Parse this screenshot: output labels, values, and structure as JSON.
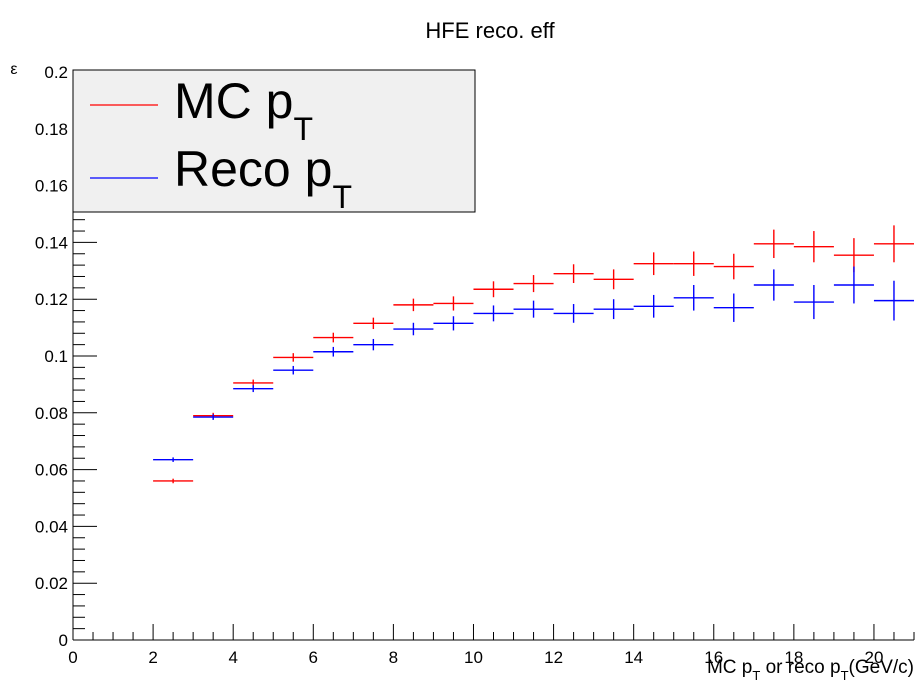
{
  "chart_data": {
    "type": "scatter",
    "title": "HFE reco. eff",
    "ylabel": "ε",
    "xlabel": {
      "part1": "MC p",
      "sub1": "T",
      "part2": " or reco p",
      "sub2": "T",
      "part3": "(GeV/c)"
    },
    "xlim": [
      0,
      21
    ],
    "ylim": [
      0,
      0.2
    ],
    "x_ticks": [
      0,
      2,
      4,
      6,
      8,
      10,
      12,
      14,
      16,
      18,
      20
    ],
    "y_ticks": [
      0,
      0.02,
      0.04,
      0.06,
      0.08,
      0.1,
      0.12,
      0.14,
      0.16,
      0.18,
      0.2
    ],
    "y_tick_labels": [
      "0",
      "0.02",
      "0.04",
      "0.06",
      "0.08",
      "0.1",
      "0.12",
      "0.14",
      "0.16",
      "0.18",
      "0.2"
    ],
    "grid": false,
    "legend_position": "top-left",
    "series": [
      {
        "name": "MC p",
        "name_sub": "T",
        "color": "#ff0000",
        "points": [
          {
            "x": 2.5,
            "y": 0.056,
            "xerr": 0.5,
            "yerr": 0.0008
          },
          {
            "x": 3.5,
            "y": 0.079,
            "xerr": 0.5,
            "yerr": 0.001
          },
          {
            "x": 4.5,
            "y": 0.0905,
            "xerr": 0.5,
            "yerr": 0.0012
          },
          {
            "x": 5.5,
            "y": 0.0995,
            "xerr": 0.5,
            "yerr": 0.0015
          },
          {
            "x": 6.5,
            "y": 0.1065,
            "xerr": 0.5,
            "yerr": 0.0017
          },
          {
            "x": 7.5,
            "y": 0.1115,
            "xerr": 0.5,
            "yerr": 0.002
          },
          {
            "x": 8.5,
            "y": 0.118,
            "xerr": 0.5,
            "yerr": 0.0022
          },
          {
            "x": 9.5,
            "y": 0.1185,
            "xerr": 0.5,
            "yerr": 0.0025
          },
          {
            "x": 10.5,
            "y": 0.1235,
            "xerr": 0.5,
            "yerr": 0.0028
          },
          {
            "x": 11.5,
            "y": 0.1255,
            "xerr": 0.5,
            "yerr": 0.003
          },
          {
            "x": 12.5,
            "y": 0.129,
            "xerr": 0.5,
            "yerr": 0.0033
          },
          {
            "x": 13.5,
            "y": 0.127,
            "xerr": 0.5,
            "yerr": 0.0035
          },
          {
            "x": 14.5,
            "y": 0.1325,
            "xerr": 0.5,
            "yerr": 0.004
          },
          {
            "x": 15.5,
            "y": 0.1325,
            "xerr": 0.5,
            "yerr": 0.0043
          },
          {
            "x": 16.5,
            "y": 0.1315,
            "xerr": 0.5,
            "yerr": 0.0045
          },
          {
            "x": 17.5,
            "y": 0.1395,
            "xerr": 0.5,
            "yerr": 0.005
          },
          {
            "x": 18.5,
            "y": 0.1385,
            "xerr": 0.5,
            "yerr": 0.0055
          },
          {
            "x": 19.5,
            "y": 0.1355,
            "xerr": 0.5,
            "yerr": 0.006
          },
          {
            "x": 20.5,
            "y": 0.1395,
            "xerr": 0.5,
            "yerr": 0.0065
          }
        ]
      },
      {
        "name": "Reco p",
        "name_sub": "T",
        "color": "#0000ff",
        "points": [
          {
            "x": 2.5,
            "y": 0.0635,
            "xerr": 0.5,
            "yerr": 0.0008
          },
          {
            "x": 3.5,
            "y": 0.0785,
            "xerr": 0.5,
            "yerr": 0.001
          },
          {
            "x": 4.5,
            "y": 0.0885,
            "xerr": 0.5,
            "yerr": 0.0012
          },
          {
            "x": 5.5,
            "y": 0.095,
            "xerr": 0.5,
            "yerr": 0.0015
          },
          {
            "x": 6.5,
            "y": 0.1015,
            "xerr": 0.5,
            "yerr": 0.0017
          },
          {
            "x": 7.5,
            "y": 0.104,
            "xerr": 0.5,
            "yerr": 0.002
          },
          {
            "x": 8.5,
            "y": 0.1095,
            "xerr": 0.5,
            "yerr": 0.0022
          },
          {
            "x": 9.5,
            "y": 0.1115,
            "xerr": 0.5,
            "yerr": 0.0025
          },
          {
            "x": 10.5,
            "y": 0.115,
            "xerr": 0.5,
            "yerr": 0.0028
          },
          {
            "x": 11.5,
            "y": 0.1165,
            "xerr": 0.5,
            "yerr": 0.003
          },
          {
            "x": 12.5,
            "y": 0.115,
            "xerr": 0.5,
            "yerr": 0.0033
          },
          {
            "x": 13.5,
            "y": 0.1165,
            "xerr": 0.5,
            "yerr": 0.0035
          },
          {
            "x": 14.5,
            "y": 0.1175,
            "xerr": 0.5,
            "yerr": 0.004
          },
          {
            "x": 15.5,
            "y": 0.1205,
            "xerr": 0.5,
            "yerr": 0.0045
          },
          {
            "x": 16.5,
            "y": 0.117,
            "xerr": 0.5,
            "yerr": 0.005
          },
          {
            "x": 17.5,
            "y": 0.125,
            "xerr": 0.5,
            "yerr": 0.0055
          },
          {
            "x": 18.5,
            "y": 0.119,
            "xerr": 0.5,
            "yerr": 0.006
          },
          {
            "x": 19.5,
            "y": 0.125,
            "xerr": 0.5,
            "yerr": 0.0065
          },
          {
            "x": 20.5,
            "y": 0.1195,
            "xerr": 0.5,
            "yerr": 0.007
          }
        ]
      }
    ]
  }
}
